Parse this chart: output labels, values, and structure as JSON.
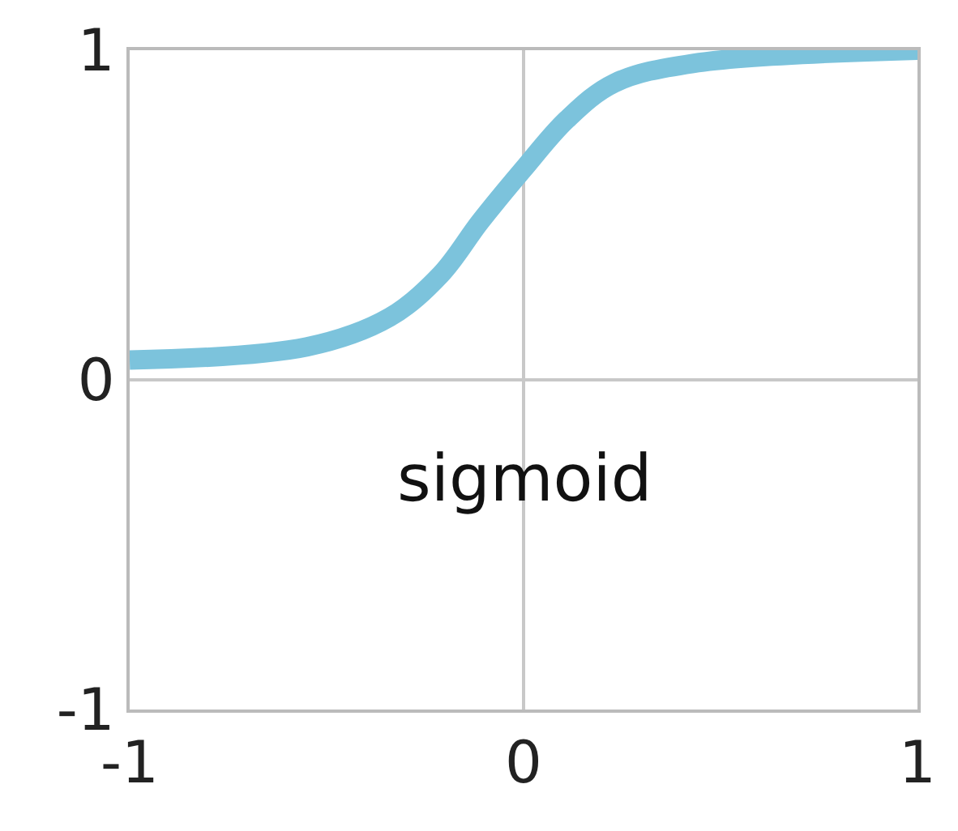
{
  "chart_data": {
    "type": "line",
    "x": [
      -1,
      -0.55,
      -0.34,
      -0.21,
      -0.11,
      0,
      0.11,
      0.23,
      0.43,
      1
    ],
    "series": [
      {
        "color": "#7cc3dc",
        "values": [
          0.06,
          0.1,
          0.19,
          0.32,
          0.48,
          0.64,
          0.79,
          0.9,
          0.96,
          1.0
        ]
      }
    ],
    "xlim": [
      -1,
      1
    ],
    "ylim": [
      -1,
      1
    ],
    "xticks": [
      -1,
      0,
      1
    ],
    "yticks": [
      -1,
      0,
      1
    ],
    "grid": true,
    "marker": "none",
    "line_style": "solid",
    "annotations": [
      "sigmoid"
    ]
  }
}
